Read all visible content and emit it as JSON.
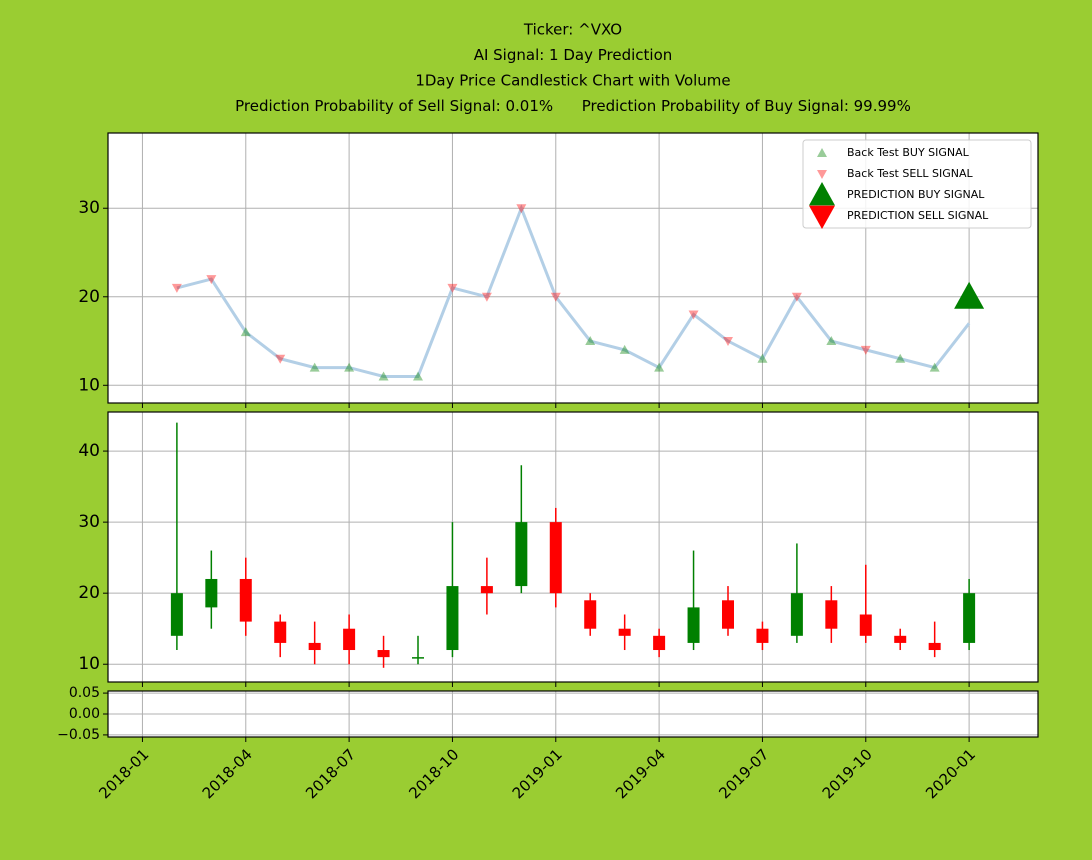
{
  "chart_data": [
    {
      "type": "line",
      "title_lines": [
        "Ticker: ^VXO",
        "AI Signal: 1 Day Prediction",
        "1Day Price Candlestick Chart with Volume",
        "Prediction Probability of Sell Signal: 0.01%      Prediction Probability of Buy Signal: 99.99%"
      ],
      "x": [
        "2018-02",
        "2018-03",
        "2018-04",
        "2018-05",
        "2018-06",
        "2018-07",
        "2018-08",
        "2018-09",
        "2018-10",
        "2018-11",
        "2018-12",
        "2019-01",
        "2019-02",
        "2019-03",
        "2019-04",
        "2019-05",
        "2019-06",
        "2019-07",
        "2019-08",
        "2019-09",
        "2019-10",
        "2019-11",
        "2019-12",
        "2020-01"
      ],
      "line": {
        "color": "#b3cfe6",
        "values": [
          21,
          22,
          16,
          13,
          12,
          12,
          11,
          11,
          21,
          20,
          30,
          20,
          15,
          14,
          12,
          18,
          15,
          13,
          20,
          15,
          14,
          13,
          12,
          17
        ]
      },
      "series": [
        {
          "name": "Back Test BUY SIGNAL",
          "color": "green",
          "marker": "up",
          "values": [
            null,
            null,
            16,
            null,
            12,
            12,
            11,
            11,
            null,
            null,
            null,
            null,
            15,
            14,
            12,
            null,
            null,
            13,
            null,
            15,
            null,
            13,
            12,
            null
          ]
        },
        {
          "name": "Back Test SELL SIGNAL",
          "color": "red",
          "marker": "down",
          "values": [
            21,
            22,
            null,
            13,
            null,
            null,
            null,
            null,
            21,
            20,
            30,
            20,
            null,
            null,
            null,
            18,
            15,
            null,
            20,
            null,
            14,
            null,
            null,
            null
          ]
        },
        {
          "name": "PREDICTION BUY SIGNAL",
          "color": "green",
          "marker": "up-large",
          "values": [
            null,
            null,
            null,
            null,
            null,
            null,
            null,
            null,
            null,
            null,
            null,
            null,
            null,
            null,
            null,
            null,
            null,
            null,
            null,
            null,
            null,
            null,
            null,
            20
          ]
        },
        {
          "name": "PREDICTION SELL SIGNAL",
          "color": "red",
          "marker": "down-large",
          "values": [
            null,
            null,
            null,
            null,
            null,
            null,
            null,
            null,
            null,
            null,
            null,
            null,
            null,
            null,
            null,
            null,
            null,
            null,
            null,
            null,
            null,
            null,
            null,
            null
          ]
        }
      ],
      "xlim": [
        "2017-12",
        "2020-03"
      ],
      "xticks": [
        "2018-01",
        "2018-04",
        "2018-07",
        "2018-10",
        "2019-01",
        "2019-04",
        "2019-07",
        "2019-10",
        "2020-01"
      ],
      "ylim": [
        8,
        38.5
      ],
      "yticks": [
        10,
        20,
        30
      ],
      "grid": true,
      "legend": "upper right"
    },
    {
      "type": "candlestick",
      "open": [
        14,
        18,
        22,
        16,
        13,
        15,
        12,
        11,
        12,
        21,
        21,
        30,
        19,
        15,
        14,
        13,
        19,
        15,
        14,
        19,
        17,
        14,
        13,
        13
      ],
      "high": [
        44,
        26,
        25,
        17,
        16,
        17,
        14,
        14,
        30,
        25,
        38,
        32,
        20,
        17,
        15,
        26,
        21,
        16,
        27,
        21,
        24,
        15,
        16,
        22
      ],
      "low": [
        12,
        15,
        14,
        11,
        10,
        10,
        9.5,
        10,
        11,
        17,
        20,
        18,
        14,
        12,
        11,
        12,
        14,
        12,
        13,
        13,
        13,
        12,
        11,
        12
      ],
      "close": [
        20,
        22,
        16,
        13,
        12,
        12,
        11,
        11,
        21,
        20,
        30,
        20,
        15,
        14,
        12,
        18,
        15,
        13,
        20,
        15,
        14,
        13,
        12,
        20
      ],
      "up_color": "green",
      "down_color": "red",
      "ylim": [
        7.5,
        45.5
      ],
      "yticks": [
        10,
        20,
        30,
        40
      ],
      "grid": true
    },
    {
      "type": "bar",
      "ylim": [
        -0.055,
        0.055
      ],
      "yticks": [
        {
          "value": -0.05,
          "label": "−0.05"
        },
        {
          "value": 0,
          "label": "0.00"
        },
        {
          "value": 0.05,
          "label": "0.05"
        }
      ],
      "grid": true
    }
  ]
}
